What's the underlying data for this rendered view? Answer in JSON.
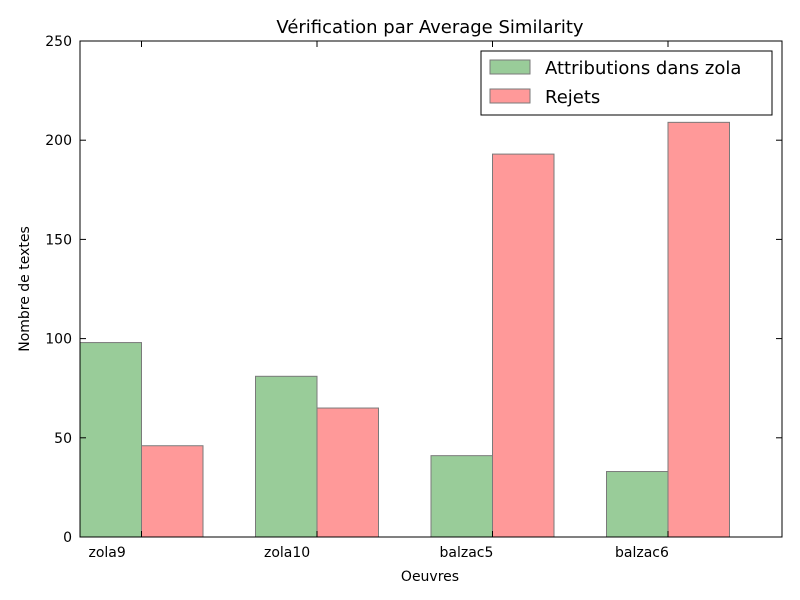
{
  "chart_data": {
    "type": "bar",
    "title": "Vérification par Average Similarity",
    "xlabel": "Oeuvres",
    "ylabel": "Nombre de textes",
    "categories": [
      "zola9",
      "zola10",
      "balzac5",
      "balzac6"
    ],
    "series": [
      {
        "name": "Attributions dans zola",
        "color": "#99cc99",
        "values": [
          98,
          81,
          41,
          33
        ]
      },
      {
        "name": "Rejets",
        "color": "#ff9999",
        "values": [
          46,
          65,
          193,
          209
        ]
      }
    ],
    "ylim": [
      0,
      250
    ],
    "yticks": [
      0,
      50,
      100,
      150,
      200,
      250
    ],
    "grid": false,
    "legend": "top-right"
  }
}
